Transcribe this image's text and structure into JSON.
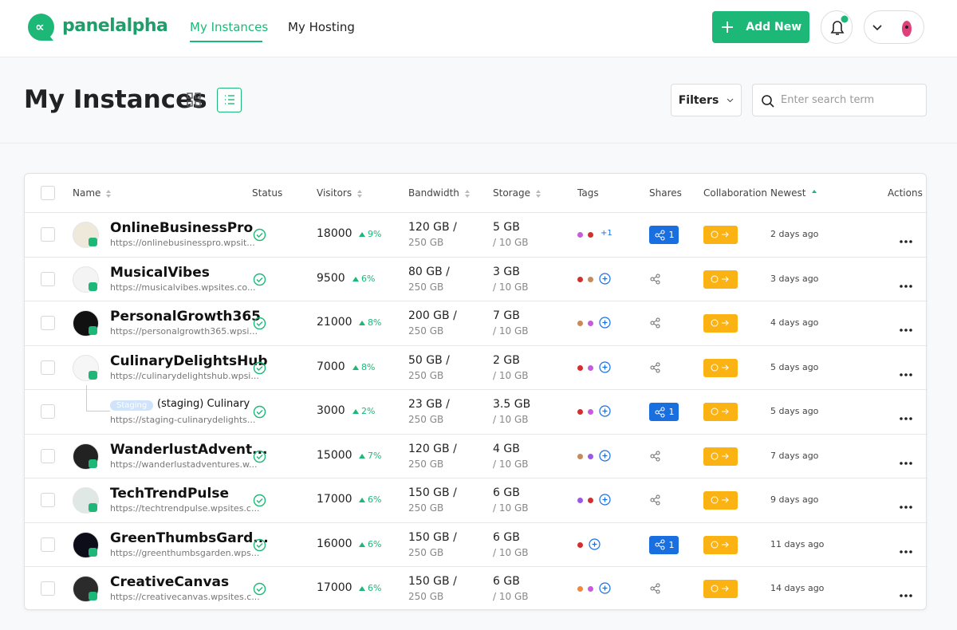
{
  "header": {
    "logo": "panelalpha",
    "nav": [
      "My Instances",
      "My Hosting"
    ],
    "add_new": "Add New"
  },
  "toolbar": {
    "title": "My Instances",
    "filters": "Filters",
    "search_placeholder": "Enter search term"
  },
  "table": {
    "columns": [
      "Name",
      "Status",
      "Visitors",
      "Bandwidth",
      "Storage",
      "Tags",
      "Shares",
      "Collaboration",
      "Newest",
      "Actions"
    ],
    "rows": [
      {
        "name": "OnlineBusinessPro",
        "url": "https://onlinebusinesspro.wpsit...",
        "visitors": 18000,
        "growth": "9%",
        "bandwidth_used": "120 GB /",
        "bandwidth_total": "250 GB",
        "storage_used": "5 GB",
        "storage_total": "/ 10 GB",
        "tags": [
          "#c65bdc",
          "#d32f2f"
        ],
        "tags_more": "+1",
        "shares": "1",
        "newest": "2 days ago"
      },
      {
        "name": "MusicalVibes",
        "url": "https://musicalvibes.wpsites.co...",
        "visitors": 9500,
        "growth": "6%",
        "bandwidth_used": "80 GB /",
        "bandwidth_total": "250 GB",
        "storage_used": "3 GB",
        "storage_total": "/ 10 GB",
        "tags": [
          "#d32f2f",
          "#c98a5a"
        ],
        "shares": null,
        "newest": "3 days ago"
      },
      {
        "name": "PersonalGrowth365",
        "url": "https://personalgrowth365.wpsi...",
        "visitors": 21000,
        "growth": "8%",
        "bandwidth_used": "200 GB /",
        "bandwidth_total": "250 GB",
        "storage_used": "7 GB",
        "storage_total": "/ 10 GB",
        "tags": [
          "#c98a5a",
          "#c65bdc"
        ],
        "shares": null,
        "newest": "4 days ago"
      },
      {
        "name": "CulinaryDelightsHub",
        "url": "https://culinarydelightshub.wpsi...",
        "visitors": 7000,
        "growth": "8%",
        "bandwidth_used": "50 GB /",
        "bandwidth_total": "250 GB",
        "storage_used": "2 GB",
        "storage_total": "/ 10 GB",
        "tags": [
          "#d32f2f",
          "#c65bdc"
        ],
        "shares": null,
        "newest": "5 days ago"
      },
      {
        "staging": "Staging",
        "name": "(staging) Culinary",
        "url": "https://staging-culinarydelights...",
        "visitors": 3000,
        "growth": "2%",
        "bandwidth_used": "23 GB /",
        "bandwidth_total": "250 GB",
        "storage_used": "3.5 GB",
        "storage_total": "/ 10 GB",
        "tags": [
          "#d32f2f",
          "#c65bdc"
        ],
        "shares": "1",
        "newest": "5 days ago"
      },
      {
        "name": "WanderlustAdvent...",
        "url": "https://wanderlustadventures.w...",
        "visitors": 15000,
        "growth": "7%",
        "bandwidth_used": "120 GB /",
        "bandwidth_total": "250 GB",
        "storage_used": "4 GB",
        "storage_total": "/ 10 GB",
        "tags": [
          "#c98a5a",
          "#9b59e0"
        ],
        "shares": null,
        "newest": "7 days ago"
      },
      {
        "name": "TechTrendPulse",
        "url": "https://techtrendpulse.wpsites.c...",
        "visitors": 17000,
        "growth": "6%",
        "bandwidth_used": "150 GB /",
        "bandwidth_total": "250 GB",
        "storage_used": "6 GB",
        "storage_total": "/ 10 GB",
        "tags": [
          "#9b59e0",
          "#d32f2f"
        ],
        "shares": null,
        "newest": "9 days ago"
      },
      {
        "name": "GreenThumbsGard...",
        "url": "https://greenthumbsgarden.wps...",
        "visitors": 16000,
        "growth": "6%",
        "bandwidth_used": "150 GB /",
        "bandwidth_total": "250 GB",
        "storage_used": "6 GB",
        "storage_total": "/ 10 GB",
        "tags": [
          "#d32f2f"
        ],
        "shares": "1",
        "newest": "11 days ago"
      },
      {
        "name": "CreativeCanvas",
        "url": "https://creativecanvas.wpsites.c...",
        "visitors": 17000,
        "growth": "6%",
        "bandwidth_used": "150 GB /",
        "bandwidth_total": "250 GB",
        "storage_used": "6 GB",
        "storage_total": "/ 10 GB",
        "tags": [
          "#f0883e",
          "#c65bdc"
        ],
        "shares": null,
        "newest": "14 days ago"
      }
    ]
  }
}
